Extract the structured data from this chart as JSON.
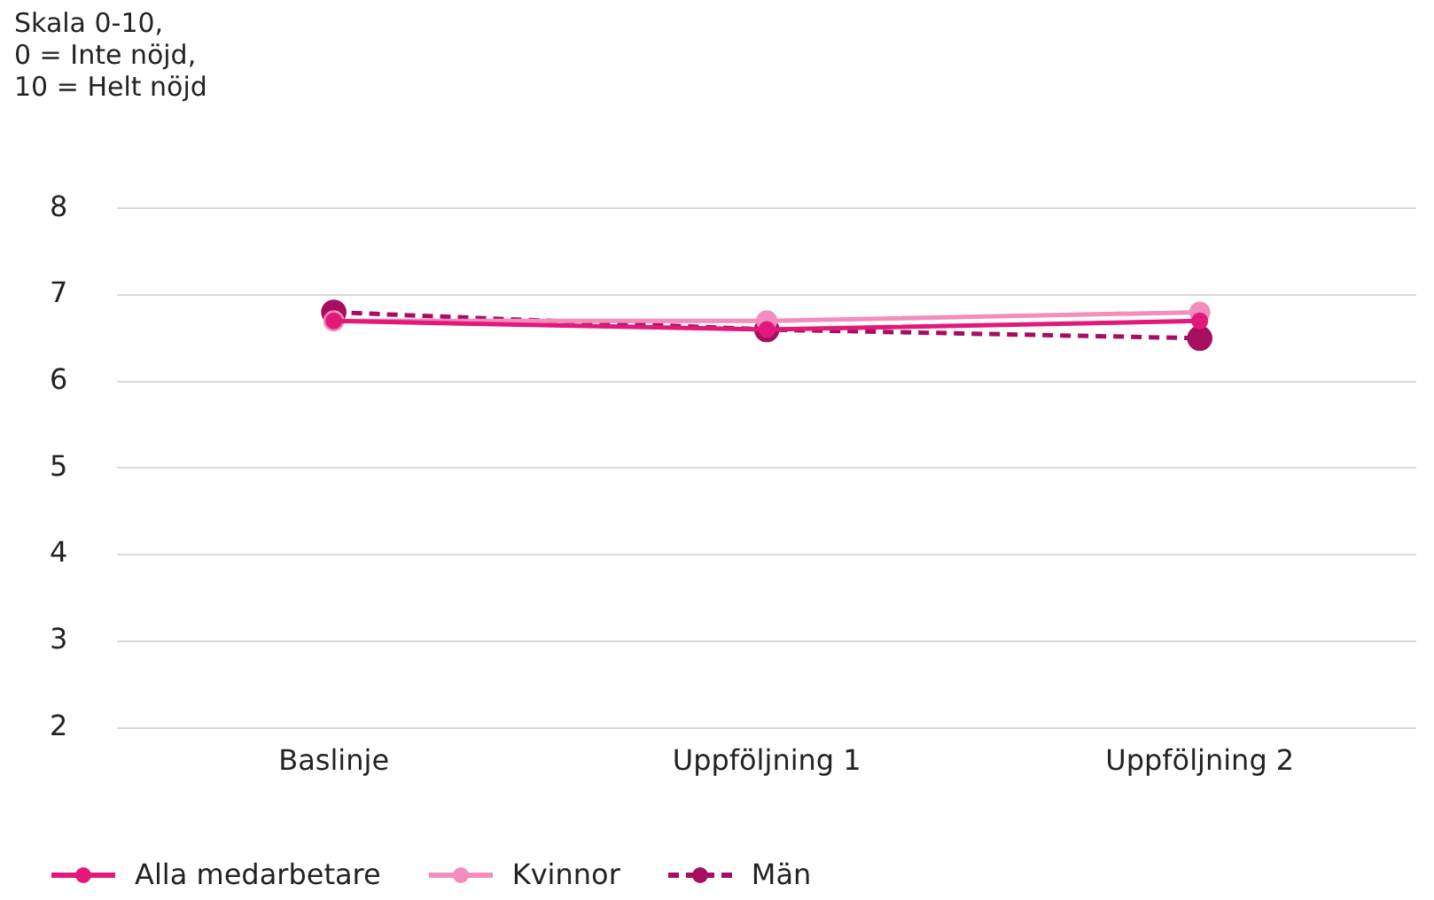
{
  "chart_data": {
    "type": "line",
    "ylabel": "Skala 0-10,\n0 = Inte nöjd,\n10 = Helt nöjd",
    "categories": [
      "Baslinje",
      "Uppföljning 1",
      "Uppföljning 2"
    ],
    "series": [
      {
        "name": "Alla medarbetare",
        "color": "#e2187b",
        "values": [
          6.7,
          6.6,
          6.7
        ],
        "line_style": "solid"
      },
      {
        "name": "Kvinnor",
        "color": "#f28dbd",
        "values": [
          6.7,
          6.7,
          6.8
        ],
        "line_style": "solid"
      },
      {
        "name": "Män",
        "color": "#a50f5e",
        "values": [
          6.8,
          6.6,
          6.5
        ],
        "line_style": "dashed"
      }
    ],
    "ylim": [
      2,
      8
    ],
    "yticks": [
      2,
      3,
      4,
      5,
      6,
      7,
      8
    ],
    "grid": "y",
    "legend": "bottom left",
    "marker": "circle"
  }
}
